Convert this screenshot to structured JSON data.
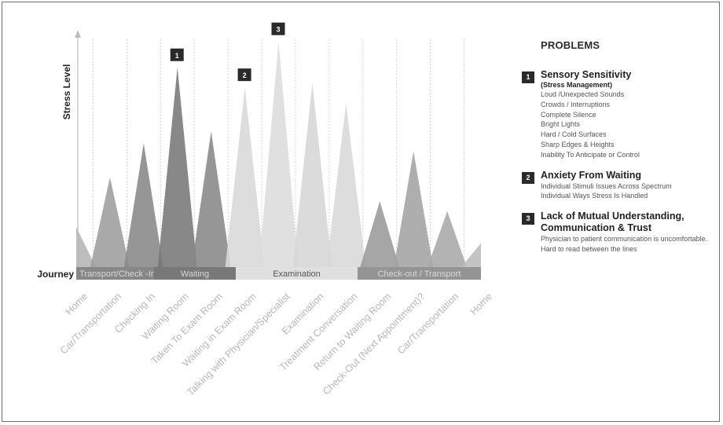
{
  "chart_data": {
    "type": "area",
    "ylabel": "Stress Level",
    "xlabel": "Journey",
    "stages": [
      "Home",
      "Car/Transportation",
      "Checking In",
      "Waiting Room",
      "Taken To Exam Room",
      "Waiting in Exam Room",
      "Talking with Physician/Specialist",
      "Examination",
      "Treatment Conversation",
      "Return to Waiting Room",
      "Check-Out (Next Appointment)?",
      "Car/Transportation",
      "Home"
    ],
    "values": [
      20,
      45,
      62,
      100,
      68,
      90,
      113,
      92,
      82,
      33,
      58,
      28,
      12
    ],
    "shades": [
      "#b4b4b4",
      "#9d9d9d",
      "#888888",
      "#777777",
      "#888888",
      "#d8d8d8",
      "#dcdcdc",
      "#d6d6d6",
      "#d8d8d8",
      "#9a9a9a",
      "#a3a3a3",
      "#a8a8a8",
      "#bcbcbc"
    ],
    "phases": [
      {
        "label": "Transport/Check -In",
        "color": "#6d6d6d"
      },
      {
        "label": "Waiting",
        "color": "#5a5a5a"
      },
      {
        "label": "Examination",
        "color": "#d9d9d9"
      },
      {
        "label": "Check-out / Transport",
        "color": "#7c7c7c"
      }
    ],
    "markers": [
      {
        "label": "1",
        "stage": 3
      },
      {
        "label": "2",
        "stage": 5
      },
      {
        "label": "3",
        "stage": 6
      }
    ],
    "ylim": [
      0,
      118
    ]
  },
  "problems": {
    "title": "PROBLEMS",
    "items": [
      {
        "num": "1",
        "heading": "Sensory Sensitivity",
        "subheading": "(Stress Management)",
        "points": [
          "Loud /Unexpected Sounds",
          "Crowds / Interruptions",
          "Complete Silence",
          "Bright Lights",
          "Hard / Cold Surfaces",
          "Sharp Edges & Heights",
          "Inability To Anticipate or Control"
        ]
      },
      {
        "num": "2",
        "heading": "Anxiety From Waiting",
        "subheading": "",
        "points": [
          "Individual Stimuli Issues Across Spectrum",
          "Individual Ways Stress Is Handled"
        ]
      },
      {
        "num": "3",
        "heading": "Lack of Mutual Understanding,",
        "heading2": "Communication & Trust",
        "points": [
          "Physician to patient communication is uncomfortable.",
          "Hard to read between the lines"
        ]
      }
    ]
  }
}
